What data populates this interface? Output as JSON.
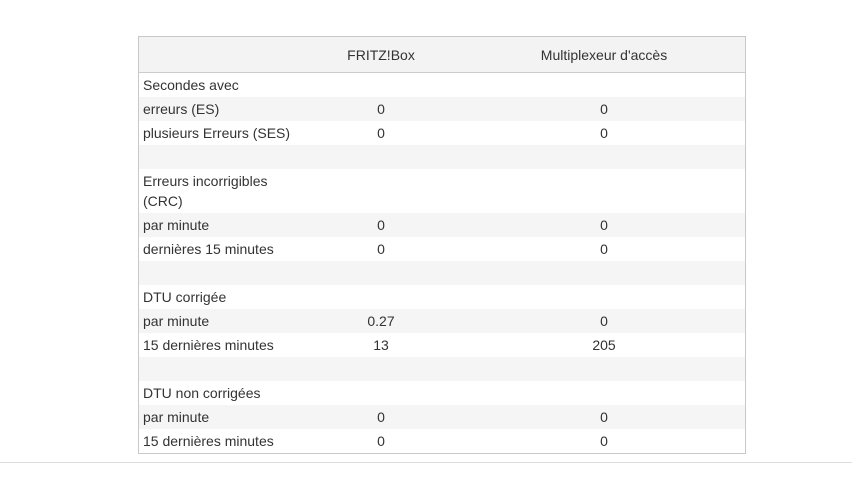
{
  "table": {
    "headers": [
      "",
      "FRITZ!Box",
      "Multiplexeur d'accès"
    ],
    "rows": [
      {
        "label": "Secondes avec",
        "v1": "",
        "v2": "",
        "style": ""
      },
      {
        "label": "erreurs (ES)",
        "v1": "0",
        "v2": "0",
        "style": "alt"
      },
      {
        "label": "plusieurs Erreurs (SES)",
        "v1": "0",
        "v2": "0",
        "style": ""
      },
      {
        "label": "",
        "v1": "",
        "v2": "",
        "style": "alt spacer"
      },
      {
        "label": "Erreurs incorrigibles (CRC)",
        "v1": "",
        "v2": "",
        "style": "tall"
      },
      {
        "label": "par minute",
        "v1": "0",
        "v2": "0",
        "style": "alt"
      },
      {
        "label": "dernières 15 minutes",
        "v1": "0",
        "v2": "0",
        "style": ""
      },
      {
        "label": "",
        "v1": "",
        "v2": "",
        "style": "alt spacer"
      },
      {
        "label": "DTU corrigée",
        "v1": "",
        "v2": "",
        "style": ""
      },
      {
        "label": "par minute",
        "v1": "0.27",
        "v2": "0",
        "style": "alt"
      },
      {
        "label": "15 dernières minutes",
        "v1": "13",
        "v2": "205",
        "style": ""
      },
      {
        "label": "",
        "v1": "",
        "v2": "",
        "style": "alt spacer"
      },
      {
        "label": "DTU non corrigées",
        "v1": "",
        "v2": "",
        "style": ""
      },
      {
        "label": "par minute",
        "v1": "0",
        "v2": "0",
        "style": "alt"
      },
      {
        "label": "15 dernières minutes",
        "v1": "0",
        "v2": "0",
        "style": ""
      }
    ]
  }
}
